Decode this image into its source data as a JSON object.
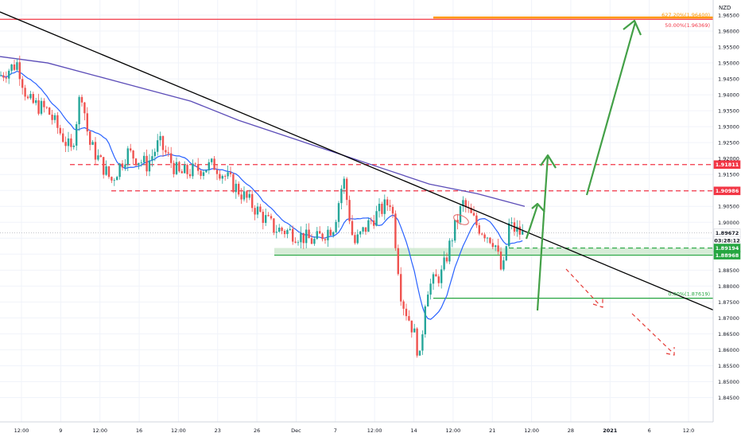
{
  "chart_data": {
    "type": "candlestick",
    "currency": "NZD",
    "y_axis": {
      "ylim": [
        1.84,
        1.968
      ],
      "ticks": [
        "1.84500",
        "1.85000",
        "1.85500",
        "1.86000",
        "1.86500",
        "1.87000",
        "1.87500",
        "1.88000",
        "1.88500",
        "1.89000",
        "1.89500",
        "1.90000",
        "1.90500",
        "1.91000",
        "1.91500",
        "1.92000",
        "1.92500",
        "1.93000",
        "1.93500",
        "1.94000",
        "1.94500",
        "1.95000",
        "1.95500",
        "1.96000",
        "1.96500"
      ]
    },
    "x_axis": {
      "labels": [
        "12:00",
        "9",
        "12:00",
        "16",
        "12:00",
        "23",
        "26",
        "Dec",
        "7",
        "12:00",
        "14",
        "12:00",
        "21",
        "12:00",
        "28",
        "2021",
        "6",
        "12:0"
      ],
      "bold": [
        "2021"
      ]
    },
    "price_badges": [
      {
        "text": "1.91811",
        "value": 1.91811,
        "bg": "#f23645",
        "fg": "#ffffff"
      },
      {
        "text": "1.90986",
        "value": 1.90986,
        "bg": "#f23645",
        "fg": "#ffffff"
      },
      {
        "text": "1.89672",
        "value": 1.89672,
        "bg": "#ffffff",
        "fg": "#131722"
      },
      {
        "text": "03:28:12",
        "value": 1.8943,
        "bg": "#ffffff",
        "fg": "#131722"
      },
      {
        "text": "1.89194",
        "value": 1.89194,
        "bg": "#26a641",
        "fg": "#ffffff"
      },
      {
        "text": "1.88968",
        "value": 1.88968,
        "bg": "#26a641",
        "fg": "#ffffff"
      }
    ],
    "fib_labels": [
      {
        "text": "627.20%(1.96400)",
        "value": 1.964,
        "color": "#ff9800"
      },
      {
        "text": "50.00%(1.96369)",
        "value": 1.96369,
        "color": "#f23645"
      },
      {
        "text": "0.00%(1.87619)",
        "value": 1.87619,
        "color": "#26a641"
      }
    ],
    "levels": [
      {
        "value": 1.96369,
        "color": "#f23645",
        "style": "solid"
      },
      {
        "value": 1.964,
        "color": "#ff9800",
        "style": "solid"
      },
      {
        "value": 1.91811,
        "color": "#f23645",
        "style": "dashed"
      },
      {
        "value": 1.90986,
        "color": "#f23645",
        "style": "dashed"
      },
      {
        "value": 1.89194,
        "color": "#26a641",
        "style": "dashed"
      },
      {
        "value": 1.88968,
        "color": "#26a641",
        "style": "solid"
      },
      {
        "value": 1.87619,
        "color": "#26a641",
        "style": "solid"
      }
    ],
    "trendline": {
      "color": "#000000"
    },
    "moving_averages": [
      {
        "color": "#2962ff"
      },
      {
        "color": "#5c4db8"
      }
    ],
    "colors": {
      "up": "#26a69a",
      "down": "#ef5350",
      "projection_up": "#43a047",
      "projection_down": "#e53935"
    }
  }
}
